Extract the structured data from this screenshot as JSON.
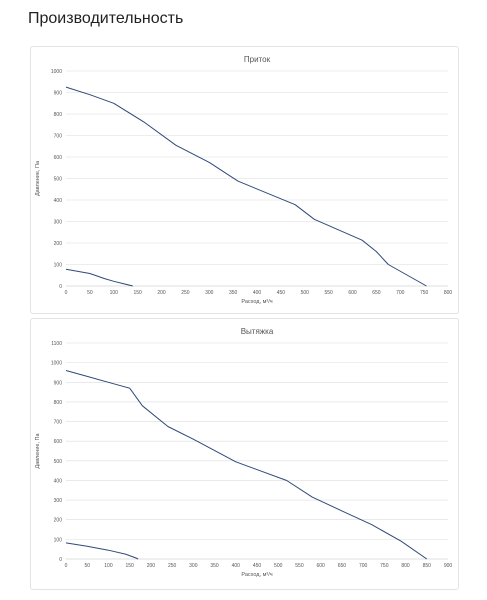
{
  "page": {
    "title": "Производительность"
  },
  "colors": {
    "line": "#2f4a7a",
    "grid": "#dcdcdc",
    "axis": "#bfbfbf",
    "text": "#595959"
  },
  "chart_data": [
    {
      "type": "line",
      "title": "Приток",
      "xlabel": "Расход, м³/ч",
      "ylabel": "Давление, Па",
      "xlim": [
        0,
        800
      ],
      "ylim": [
        0,
        1000
      ],
      "x_ticks": [
        "0",
        "50",
        "100",
        "150",
        "200",
        "250",
        "300",
        "350",
        "400",
        "450",
        "500",
        "550",
        "600",
        "650",
        "700",
        "750",
        "800"
      ],
      "y_ticks": [
        "0",
        "100",
        "200",
        "300",
        "400",
        "500",
        "600",
        "700",
        "800",
        "900",
        "1000"
      ],
      "grid": "horizontal",
      "series": [
        {
          "values": [
            [
              0,
              925
            ],
            [
              50,
              890
            ],
            [
              100,
              850
            ],
            [
              165,
              760
            ],
            [
              230,
              655
            ],
            [
              300,
              575
            ],
            [
              360,
              488
            ],
            [
              480,
              378
            ],
            [
              520,
              310
            ],
            [
              620,
              213
            ],
            [
              650,
              160
            ],
            [
              675,
              100
            ],
            [
              755,
              0
            ]
          ]
        },
        {
          "values": [
            [
              0,
              78
            ],
            [
              50,
              58
            ],
            [
              80,
              35
            ],
            [
              100,
              22
            ],
            [
              140,
              0
            ]
          ]
        }
      ]
    },
    {
      "type": "line",
      "title": "Вытяжка",
      "xlabel": "Расход, м³/ч",
      "ylabel": "Давление, Па",
      "xlim": [
        0,
        900
      ],
      "ylim": [
        0,
        1100
      ],
      "x_ticks": [
        "0",
        "50",
        "100",
        "150",
        "200",
        "250",
        "300",
        "350",
        "400",
        "450",
        "500",
        "550",
        "600",
        "650",
        "700",
        "750",
        "800",
        "850",
        "900"
      ],
      "y_ticks": [
        "0",
        "100",
        "200",
        "300",
        "400",
        "500",
        "600",
        "700",
        "800",
        "900",
        "1000",
        "1100"
      ],
      "grid": "horizontal",
      "series": [
        {
          "values": [
            [
              0,
              960
            ],
            [
              50,
              930
            ],
            [
              100,
              900
            ],
            [
              150,
              870
            ],
            [
              180,
              780
            ],
            [
              240,
              675
            ],
            [
              300,
              610
            ],
            [
              400,
              495
            ],
            [
              520,
              400
            ],
            [
              580,
              315
            ],
            [
              650,
              245
            ],
            [
              720,
              175
            ],
            [
              790,
              90
            ],
            [
              850,
              0
            ]
          ]
        },
        {
          "values": [
            [
              0,
              82
            ],
            [
              50,
              65
            ],
            [
              100,
              45
            ],
            [
              140,
              25
            ],
            [
              165,
              5
            ],
            [
              170,
              0
            ]
          ]
        }
      ]
    }
  ]
}
